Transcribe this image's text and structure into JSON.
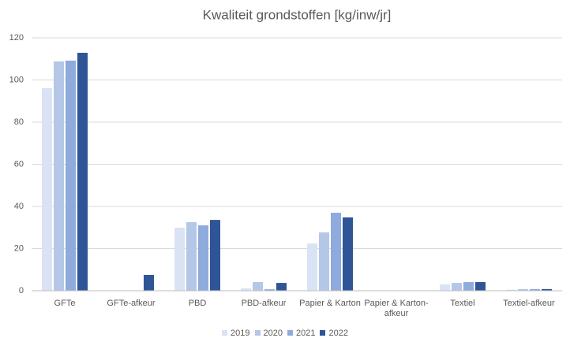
{
  "chart_data": {
    "type": "bar",
    "title": "Kwaliteit grondstoffen [kg/inw/jr]",
    "categories": [
      "GFTe",
      "GFTe-afkeur",
      "PBD",
      "PBD-afkeur",
      "Papier & Karton",
      "Papier & Karton-afkeur",
      "Textiel",
      "Textiel-afkeur"
    ],
    "series": [
      {
        "name": "2019",
        "color": "#dae3f3",
        "values": [
          96.1,
          0,
          29.9,
          1.1,
          22.4,
          0,
          3.0,
          0.5
        ]
      },
      {
        "name": "2020",
        "color": "#b4c7e7",
        "values": [
          108.8,
          0,
          32.5,
          4.1,
          27.7,
          0,
          3.7,
          0.8
        ]
      },
      {
        "name": "2021",
        "color": "#8faadc",
        "values": [
          109.2,
          0,
          31.0,
          0.7,
          37.0,
          0,
          4.1,
          0.8
        ]
      },
      {
        "name": "2022",
        "color": "#2f5597",
        "values": [
          112.9,
          7.5,
          33.6,
          3.7,
          34.8,
          0,
          4.1,
          0.8
        ]
      }
    ],
    "ylim": [
      0,
      120
    ],
    "yticks": [
      0,
      20,
      40,
      60,
      80,
      100,
      120
    ],
    "grid": true,
    "legend": "bottom"
  }
}
